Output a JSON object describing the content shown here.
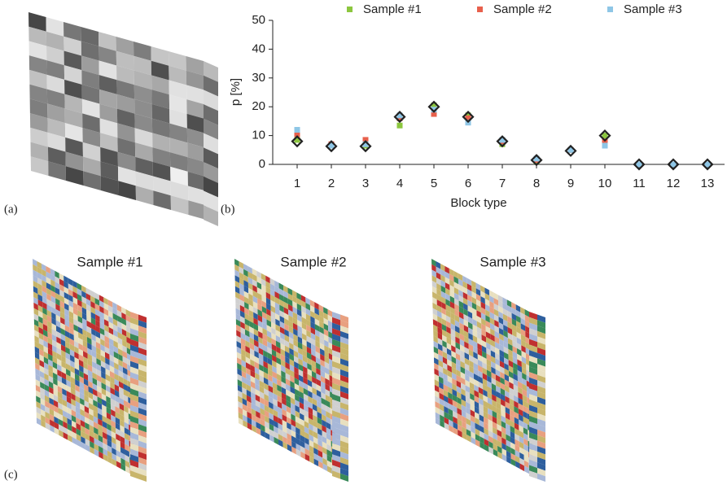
{
  "panels": {
    "a": "(a)",
    "b": "(b)",
    "c": "(c)"
  },
  "renders": [
    "Sample #1",
    "Sample #2",
    "Sample #3"
  ],
  "chart_data": {
    "type": "scatter",
    "ylabel": "p [%]",
    "xlabel": "Block type",
    "categories": [
      "1",
      "2",
      "3",
      "4",
      "5",
      "6",
      "7",
      "8",
      "9",
      "10",
      "11",
      "12",
      "13"
    ],
    "ylim": [
      0,
      50
    ],
    "yticks": [
      0,
      10,
      20,
      30,
      40,
      50
    ],
    "grid": false,
    "legend": "top",
    "series": [
      {
        "name": "Sample #1",
        "color": "#8cc63e",
        "marker": "square",
        "values": [
          8.5,
          6.5,
          6.5,
          13.5,
          20.5,
          17,
          7,
          1,
          5,
          10,
          0,
          0,
          0
        ]
      },
      {
        "name": "Sample #2",
        "color": "#e8604c",
        "marker": "square",
        "values": [
          10.5,
          7,
          8.5,
          16,
          17.5,
          16,
          8,
          1.5,
          5,
          8,
          0,
          0,
          0
        ]
      },
      {
        "name": "Sample #3",
        "color": "#8ec6e6",
        "marker": "square",
        "values": [
          12,
          6.5,
          7,
          17,
          19,
          14.5,
          8.5,
          2,
          5,
          6.5,
          0,
          0,
          0
        ]
      },
      {
        "color": "#222222",
        "marker": "diamond",
        "values": [
          8,
          6.3,
          6.3,
          16.5,
          20,
          16.5,
          8,
          1.5,
          4.7,
          10,
          0,
          0,
          0
        ]
      }
    ]
  }
}
